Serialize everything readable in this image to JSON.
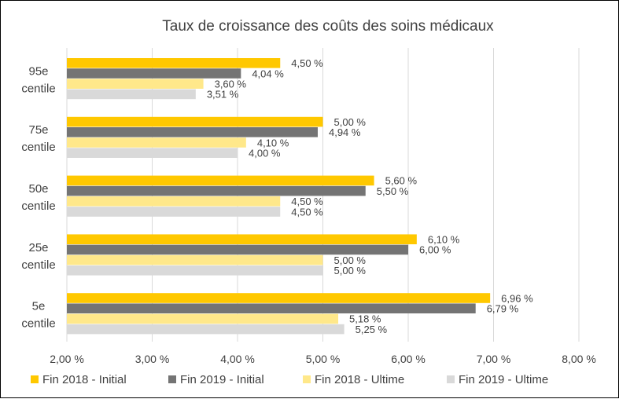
{
  "chart_data": {
    "type": "bar",
    "orientation": "horizontal",
    "title": "Taux de croissance des coûts des soins médicaux",
    "categories": [
      [
        "95e",
        "centile"
      ],
      [
        "75e",
        "centile"
      ],
      [
        "50e",
        "centile"
      ],
      [
        "25e",
        "centile"
      ],
      [
        "5e",
        "centile"
      ]
    ],
    "series": [
      {
        "name": "Fin 2018 - Initial",
        "color": "#FFC800",
        "values": [
          4.5,
          5.0,
          5.6,
          6.1,
          6.96
        ],
        "labels": [
          "4,50 %",
          "5,00 %",
          "5,60 %",
          "6,10 %",
          "6,96 %"
        ]
      },
      {
        "name": "Fin 2019 - Initial",
        "color": "#747474",
        "values": [
          4.04,
          4.94,
          5.5,
          6.0,
          6.79
        ],
        "labels": [
          "4,04 %",
          "4,94 %",
          "5,50 %",
          "6,00 %",
          "6,79 %"
        ]
      },
      {
        "name": "Fin 2018 - Ultime",
        "color": "#FFE88A",
        "values": [
          3.6,
          4.1,
          4.5,
          5.0,
          5.18
        ],
        "labels": [
          "3,60 %",
          "4,10 %",
          "4,50 %",
          "5,00 %",
          "5,18 %"
        ]
      },
      {
        "name": "Fin 2019 - Ultime",
        "color": "#D9D9D9",
        "values": [
          3.51,
          4.0,
          4.5,
          5.0,
          5.25
        ],
        "labels": [
          "3,51 %",
          "4,00 %",
          "4,50 %",
          "5,00 %",
          "5,25 %"
        ]
      }
    ],
    "xlim": [
      2.0,
      8.0
    ],
    "xticks": [
      2,
      3,
      4,
      5,
      6,
      7,
      8
    ],
    "xtick_labels": [
      "2,00 %",
      "3,00 %",
      "4,00 %",
      "5,00 %",
      "6,00 %",
      "7,00 %",
      "8,00 %"
    ],
    "grid": true,
    "legend_position": "bottom",
    "gridline_color": "#D9D9D9",
    "text_color": "#404040"
  }
}
